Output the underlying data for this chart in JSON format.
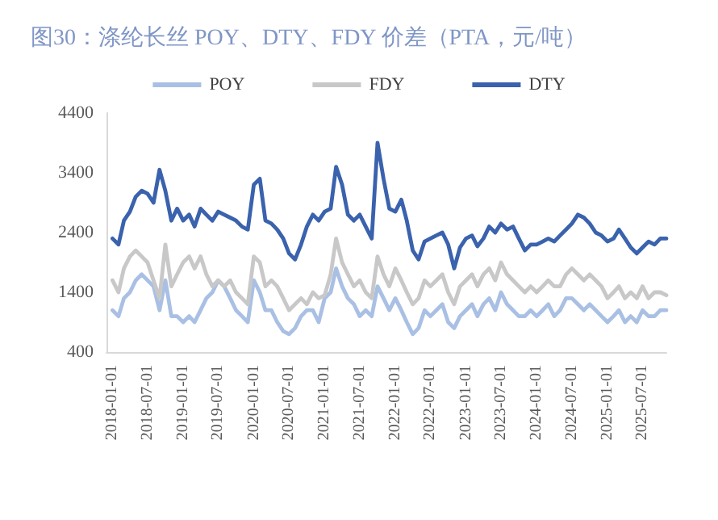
{
  "chart_data": {
    "type": "line",
    "title": "图30：涤纶长丝 POY、DTY、FDY 价差（PTA，元/吨）",
    "x": [
      "2018-01",
      "2018-02",
      "2018-03",
      "2018-04",
      "2018-05",
      "2018-06",
      "2018-07",
      "2018-08",
      "2018-09",
      "2018-10",
      "2018-11",
      "2018-12",
      "2019-01",
      "2019-02",
      "2019-03",
      "2019-04",
      "2019-05",
      "2019-06",
      "2019-07",
      "2019-08",
      "2019-09",
      "2019-10",
      "2019-11",
      "2019-12",
      "2020-01",
      "2020-02",
      "2020-03",
      "2020-04",
      "2020-05",
      "2020-06",
      "2020-07",
      "2020-08",
      "2020-09",
      "2020-10",
      "2020-11",
      "2020-12",
      "2021-01",
      "2021-02",
      "2021-03",
      "2021-04",
      "2021-05",
      "2021-06",
      "2021-07",
      "2021-08",
      "2021-09",
      "2021-10",
      "2021-11",
      "2021-12",
      "2022-01",
      "2022-02",
      "2022-03",
      "2022-04",
      "2022-05",
      "2022-06",
      "2022-07",
      "2022-08",
      "2022-09",
      "2022-10",
      "2022-11",
      "2022-12",
      "2023-01",
      "2023-02",
      "2023-03",
      "2023-04",
      "2023-05",
      "2023-06",
      "2023-07",
      "2023-08",
      "2023-09",
      "2023-10",
      "2023-11",
      "2023-12",
      "2024-01",
      "2024-02",
      "2024-03",
      "2024-04",
      "2024-05",
      "2024-06",
      "2024-07",
      "2024-08",
      "2024-09",
      "2024-10",
      "2024-11",
      "2024-12",
      "2025-01",
      "2025-02",
      "2025-03",
      "2025-04",
      "2025-05",
      "2025-06",
      "2025-07",
      "2025-08",
      "2025-09",
      "2025-10",
      "2025-11"
    ],
    "series": [
      {
        "name": "POY",
        "color": "#a9c0e4",
        "values": [
          1100,
          1000,
          1300,
          1400,
          1600,
          1700,
          1600,
          1500,
          1100,
          1600,
          1000,
          1000,
          900,
          1000,
          900,
          1100,
          1300,
          1400,
          1600,
          1500,
          1300,
          1100,
          1000,
          900,
          1600,
          1400,
          1100,
          1100,
          900,
          750,
          700,
          800,
          1000,
          1100,
          1100,
          900,
          1300,
          1400,
          1800,
          1500,
          1300,
          1200,
          1000,
          1100,
          1000,
          1500,
          1300,
          1100,
          1300,
          1100,
          900,
          700,
          800,
          1100,
          1000,
          1100,
          1200,
          900,
          800,
          1000,
          1100,
          1200,
          1000,
          1200,
          1300,
          1100,
          1400,
          1200,
          1100,
          1000,
          1000,
          1100,
          1000,
          1100,
          1200,
          1000,
          1100,
          1300,
          1300,
          1200,
          1100,
          1200,
          1100,
          1000,
          900,
          1000,
          1100,
          900,
          1000,
          900,
          1100,
          1000,
          1000,
          1100,
          1100
        ]
      },
      {
        "name": "FDY",
        "color": "#c8c8c8",
        "values": [
          1600,
          1400,
          1800,
          2000,
          2100,
          2000,
          1900,
          1600,
          1300,
          2200,
          1500,
          1700,
          1900,
          2000,
          1800,
          2000,
          1700,
          1500,
          1600,
          1500,
          1600,
          1400,
          1300,
          1200,
          2000,
          1900,
          1500,
          1600,
          1500,
          1300,
          1100,
          1200,
          1300,
          1200,
          1400,
          1300,
          1350,
          1700,
          2300,
          1900,
          1700,
          1500,
          1600,
          1400,
          1300,
          2000,
          1700,
          1500,
          1800,
          1600,
          1400,
          1200,
          1300,
          1600,
          1500,
          1600,
          1700,
          1400,
          1200,
          1500,
          1600,
          1700,
          1500,
          1700,
          1800,
          1600,
          1900,
          1700,
          1600,
          1500,
          1400,
          1500,
          1400,
          1500,
          1600,
          1500,
          1500,
          1700,
          1800,
          1700,
          1600,
          1700,
          1600,
          1500,
          1300,
          1400,
          1500,
          1300,
          1400,
          1300,
          1500,
          1300,
          1400,
          1400,
          1350
        ]
      },
      {
        "name": "DTY",
        "color": "#3a62ad",
        "values": [
          2300,
          2200,
          2600,
          2750,
          3000,
          3100,
          3050,
          2900,
          3450,
          3100,
          2600,
          2800,
          2600,
          2700,
          2500,
          2800,
          2700,
          2600,
          2750,
          2700,
          2650,
          2600,
          2500,
          2450,
          3200,
          3300,
          2600,
          2550,
          2450,
          2300,
          2050,
          1950,
          2200,
          2500,
          2700,
          2600,
          2750,
          2800,
          3500,
          3200,
          2700,
          2600,
          2700,
          2500,
          2300,
          3900,
          3300,
          2800,
          2750,
          2950,
          2600,
          2100,
          1950,
          2250,
          2300,
          2350,
          2400,
          2200,
          1800,
          2150,
          2300,
          2350,
          2170,
          2300,
          2500,
          2400,
          2550,
          2450,
          2500,
          2300,
          2100,
          2200,
          2200,
          2250,
          2300,
          2250,
          2350,
          2450,
          2550,
          2700,
          2650,
          2550,
          2400,
          2350,
          2250,
          2300,
          2450,
          2300,
          2150,
          2050,
          2150,
          2250,
          2200,
          2300,
          2300
        ]
      }
    ],
    "xlim": [
      "2017-12",
      "2025-11"
    ],
    "xticks": [
      "2018-01-01",
      "2018-07-01",
      "2019-01-01",
      "2019-07-01",
      "2020-01-01",
      "2020-07-01",
      "2021-01-01",
      "2021-07-01",
      "2022-01-01",
      "2022-07-01",
      "2023-01-01",
      "2023-07-01",
      "2024-01-01",
      "2024-07-01",
      "2025-01-01",
      "2025-07-01"
    ],
    "ylim": [
      400,
      4400
    ],
    "yticks": [
      400,
      1400,
      2400,
      3400,
      4400
    ],
    "grid": false,
    "legend": "top",
    "marker": "none",
    "line_style": "solid"
  }
}
